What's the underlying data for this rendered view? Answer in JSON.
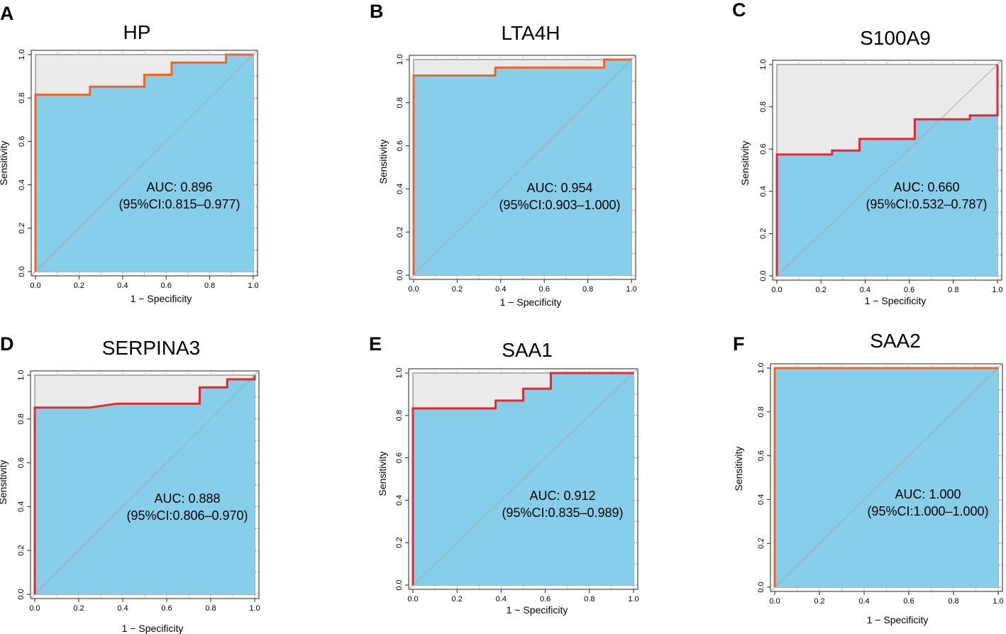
{
  "colors": {
    "fill_under": "#87CEEB",
    "fill_over": "#EBEBEB",
    "diagonal": "#A8A8A8",
    "frame": "#999999",
    "grid_x": "#33CC33",
    "grid_y": "#E02020"
  },
  "chart_data": [
    {
      "panel": "A",
      "type": "line",
      "title": "HP",
      "xlabel": "1 − Specificity",
      "ylabel": "Sensitivity",
      "xlim": [
        0,
        1
      ],
      "ylim": [
        0,
        1
      ],
      "xticks": [
        "0.0",
        "0.2",
        "0.4",
        "0.6",
        "0.8",
        "1.0"
      ],
      "yticks": [
        "0.0",
        "0.2",
        "0.4",
        "0.6",
        "0.8",
        "1.0"
      ],
      "line_color": "#F26522",
      "auc_text": "AUC: 0.896",
      "ci_text": "(95%CI:0.815–0.977)",
      "roc": [
        [
          0,
          0
        ],
        [
          0,
          0.815
        ],
        [
          0.25,
          0.815
        ],
        [
          0.25,
          0.852
        ],
        [
          0.5,
          0.852
        ],
        [
          0.5,
          0.907
        ],
        [
          0.625,
          0.907
        ],
        [
          0.625,
          0.963
        ],
        [
          0.875,
          0.963
        ],
        [
          0.875,
          1.0
        ],
        [
          1,
          1
        ]
      ]
    },
    {
      "panel": "B",
      "type": "line",
      "title": "LTA4H",
      "xlabel": "1 − Specificity",
      "ylabel": "Sensitivity",
      "xlim": [
        0,
        1
      ],
      "ylim": [
        0,
        1
      ],
      "xticks": [
        "0.0",
        "0.2",
        "0.4",
        "0.6",
        "0.8",
        "1.0"
      ],
      "yticks": [
        "0.0",
        "0.2",
        "0.4",
        "0.6",
        "0.8",
        "1.0"
      ],
      "line_color": "#F26522",
      "auc_text": "AUC: 0.954",
      "ci_text": "(95%CI:0.903–1.000)",
      "roc": [
        [
          0,
          0
        ],
        [
          0,
          0.926
        ],
        [
          0.375,
          0.926
        ],
        [
          0.375,
          0.963
        ],
        [
          0.875,
          0.963
        ],
        [
          0.875,
          1.0
        ],
        [
          1,
          1
        ]
      ]
    },
    {
      "panel": "C",
      "type": "line",
      "title": "S100A9",
      "xlabel": "1 − Specificity",
      "ylabel": "Sensitivity",
      "xlim": [
        0,
        1
      ],
      "ylim": [
        0,
        1
      ],
      "xticks": [
        "0.0",
        "0.2",
        "0.4",
        "0.6",
        "0.8",
        "1.0"
      ],
      "yticks": [
        "0.0",
        "0.2",
        "0.4",
        "0.6",
        "0.8",
        "1.0"
      ],
      "line_color": "#E8262B",
      "auc_text": "AUC: 0.660",
      "ci_text": "(95%CI:0.532–0.787)",
      "roc": [
        [
          0,
          0
        ],
        [
          0,
          0.574
        ],
        [
          0.25,
          0.574
        ],
        [
          0.25,
          0.593
        ],
        [
          0.375,
          0.593
        ],
        [
          0.375,
          0.648
        ],
        [
          0.625,
          0.648
        ],
        [
          0.625,
          0.741
        ],
        [
          0.875,
          0.741
        ],
        [
          0.875,
          0.759
        ],
        [
          1,
          0.759
        ],
        [
          1,
          1
        ]
      ]
    },
    {
      "panel": "D",
      "type": "line",
      "title": "SERPINA3",
      "xlabel": "1 − Specificity",
      "ylabel": "Sensitivity",
      "xlim": [
        0,
        1
      ],
      "ylim": [
        0,
        1
      ],
      "xticks": [
        "0.0",
        "0.2",
        "0.4",
        "0.6",
        "0.8",
        "1.0"
      ],
      "yticks": [
        "0.0",
        "0.2",
        "0.4",
        "0.6",
        "0.8",
        "1.0"
      ],
      "line_color": "#E8262B",
      "auc_text": "AUC: 0.888",
      "ci_text": "(95%CI:0.806–0.970)",
      "roc": [
        [
          0,
          0
        ],
        [
          0,
          0.852
        ],
        [
          0.25,
          0.852
        ],
        [
          0.375,
          0.87
        ],
        [
          0.75,
          0.87
        ],
        [
          0.75,
          0.944
        ],
        [
          0.875,
          0.944
        ],
        [
          0.875,
          0.981
        ],
        [
          1,
          0.981
        ],
        [
          1,
          1
        ]
      ]
    },
    {
      "panel": "E",
      "type": "line",
      "title": "SAA1",
      "xlabel": "1 − Specificity",
      "ylabel": "Sensitivity",
      "xlim": [
        0,
        1
      ],
      "ylim": [
        0,
        1
      ],
      "xticks": [
        "0.0",
        "0.2",
        "0.4",
        "0.6",
        "0.8",
        "1.0"
      ],
      "yticks": [
        "0.0",
        "0.2",
        "0.4",
        "0.6",
        "0.8",
        "1.0"
      ],
      "line_color": "#E8262B",
      "auc_text": "AUC: 0.912",
      "ci_text": "(95%CI:0.835–0.989)",
      "roc": [
        [
          0,
          0
        ],
        [
          0,
          0.833
        ],
        [
          0.375,
          0.833
        ],
        [
          0.375,
          0.87
        ],
        [
          0.5,
          0.87
        ],
        [
          0.5,
          0.926
        ],
        [
          0.625,
          0.926
        ],
        [
          0.625,
          1.0
        ],
        [
          1,
          1
        ]
      ]
    },
    {
      "panel": "F",
      "type": "line",
      "title": "SAA2",
      "xlabel": "1 − Specificity",
      "ylabel": "Sensitivity",
      "xlim": [
        0,
        1
      ],
      "ylim": [
        0,
        1
      ],
      "xticks": [
        "0.0",
        "0.2",
        "0.4",
        "0.6",
        "0.8",
        "1.0"
      ],
      "yticks": [
        "0.0",
        "0.2",
        "0.4",
        "0.6",
        "0.8",
        "1.0"
      ],
      "line_color": "#F26522",
      "auc_text": "AUC: 1.000",
      "ci_text": "(95%CI:1.000–1.000)",
      "roc": [
        [
          0,
          0
        ],
        [
          0,
          1.0
        ],
        [
          1,
          1
        ]
      ]
    }
  ]
}
